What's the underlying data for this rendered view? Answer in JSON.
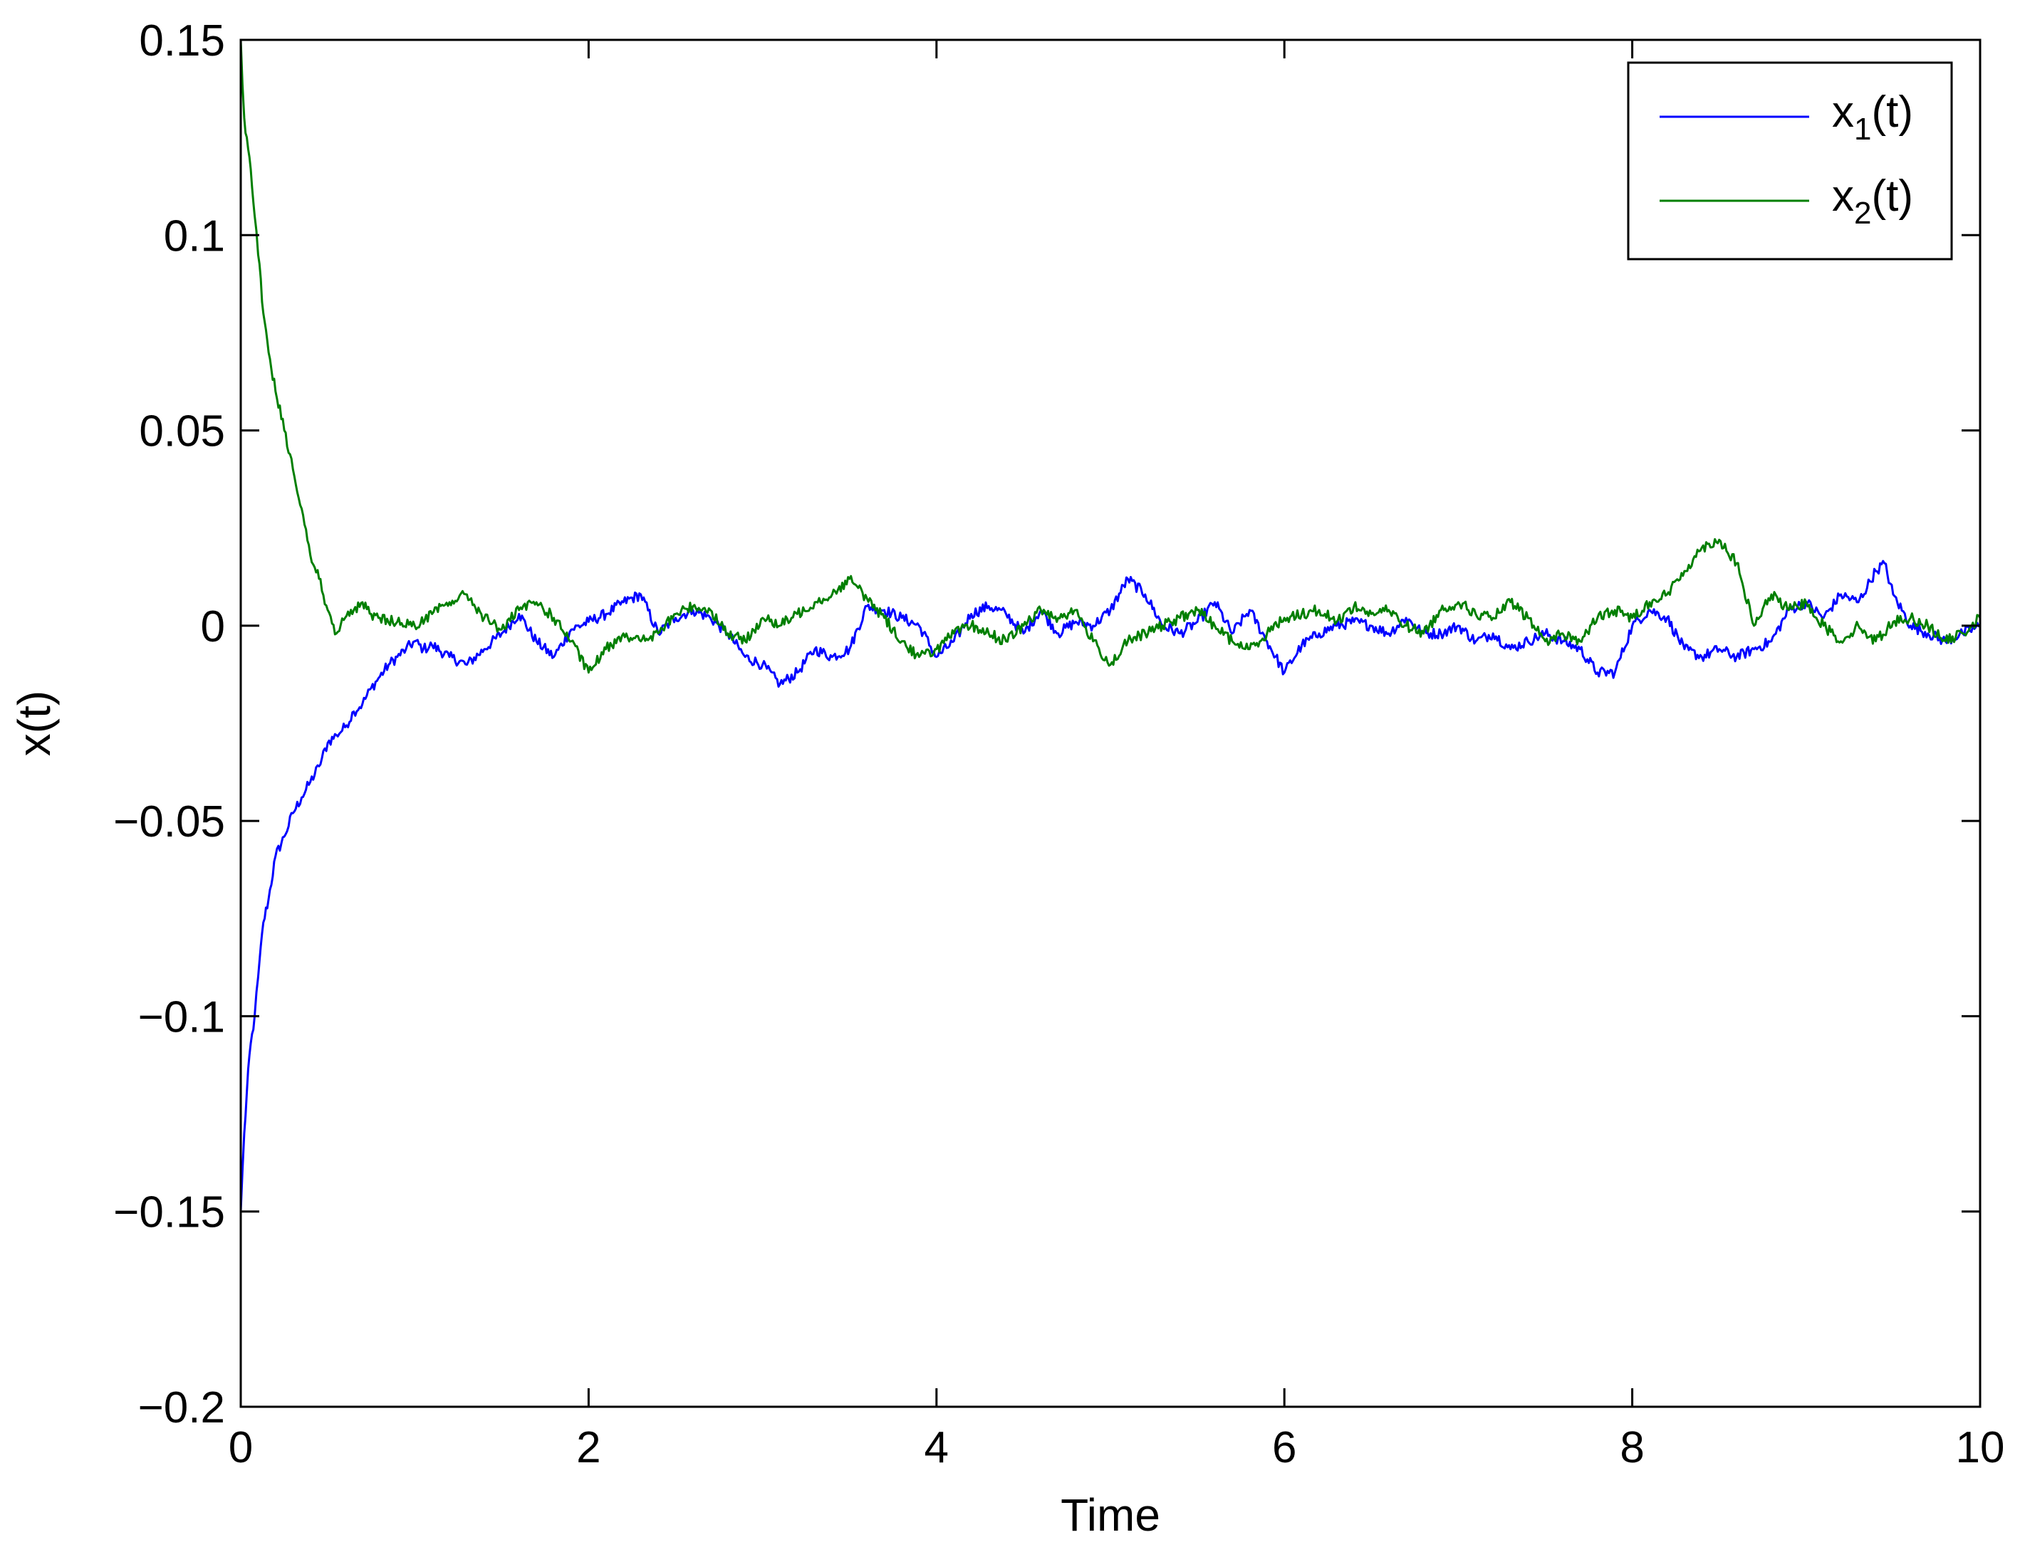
{
  "chart_data": {
    "type": "line",
    "title": "",
    "xlabel": "Time",
    "ylabel": "x(t)",
    "xlim": [
      0,
      10
    ],
    "ylim": [
      -0.2,
      0.15
    ],
    "xticks": [
      0,
      2,
      4,
      6,
      8,
      10
    ],
    "xtick_labels": [
      "0",
      "2",
      "4",
      "6",
      "8",
      "10"
    ],
    "yticks": [
      0.15,
      0.1,
      0.05,
      0,
      -0.05,
      -0.1,
      -0.15,
      -0.2
    ],
    "ytick_labels": [
      "0.15",
      "0.1",
      "0.05",
      "0",
      "−0.05",
      "−0.1",
      "−0.15",
      "−0.2"
    ],
    "grid": false,
    "legend_position": "top-right",
    "series": [
      {
        "name": "x1(t)",
        "legend": {
          "base": "x",
          "sub": "1",
          "suffix": "(t)"
        },
        "color": "#0000ff",
        "x": [
          0,
          0.02,
          0.05,
          0.08,
          0.1,
          0.13,
          0.16,
          0.2,
          0.25,
          0.3,
          0.35,
          0.4,
          0.45,
          0.5,
          0.55,
          0.6,
          0.65,
          0.7,
          0.75,
          0.8,
          0.85,
          0.9,
          0.95,
          1.0,
          1.05,
          1.1,
          1.2,
          1.3,
          1.4,
          1.5,
          1.6,
          1.7,
          1.8,
          1.9,
          2.0,
          2.1,
          2.2,
          2.3,
          2.4,
          2.5,
          2.6,
          2.7,
          2.8,
          2.9,
          3.0,
          3.1,
          3.2,
          3.3,
          3.4,
          3.5,
          3.6,
          3.7,
          3.8,
          3.9,
          4.0,
          4.1,
          4.2,
          4.3,
          4.4,
          4.5,
          4.6,
          4.7,
          4.8,
          4.9,
          5.0,
          5.1,
          5.2,
          5.3,
          5.4,
          5.5,
          5.6,
          5.7,
          5.8,
          5.9,
          6.0,
          6.1,
          6.2,
          6.3,
          6.4,
          6.5,
          6.6,
          6.7,
          6.8,
          6.9,
          7.0,
          7.1,
          7.2,
          7.3,
          7.4,
          7.5,
          7.6,
          7.7,
          7.8,
          7.9,
          8.0,
          8.1,
          8.2,
          8.3,
          8.4,
          8.5,
          8.6,
          8.7,
          8.8,
          8.9,
          9.0,
          9.1,
          9.2,
          9.3,
          9.4,
          9.45,
          9.5,
          9.6,
          9.7,
          9.8,
          9.9,
          10.0
        ],
        "y": [
          -0.15,
          -0.13,
          -0.11,
          -0.1,
          -0.09,
          -0.076,
          -0.07,
          -0.059,
          -0.054,
          -0.048,
          -0.044,
          -0.04,
          -0.036,
          -0.03,
          -0.028,
          -0.026,
          -0.022,
          -0.02,
          -0.016,
          -0.013,
          -0.01,
          -0.008,
          -0.006,
          -0.004,
          -0.006,
          -0.005,
          -0.008,
          -0.01,
          -0.006,
          -0.002,
          0.003,
          -0.004,
          -0.008,
          -0.001,
          0.001,
          0.003,
          0.006,
          0.008,
          -0.002,
          0.002,
          0.004,
          0.002,
          -0.002,
          -0.008,
          -0.01,
          -0.015,
          -0.012,
          -0.006,
          -0.008,
          -0.006,
          0.005,
          0.004,
          0.002,
          0.0,
          -0.008,
          -0.004,
          0.003,
          0.005,
          0.003,
          -0.002,
          0.004,
          -0.002,
          0.001,
          0.0,
          0.004,
          0.012,
          0.008,
          0.0,
          -0.002,
          0.001,
          0.006,
          -0.002,
          0.004,
          -0.004,
          -0.012,
          -0.005,
          -0.002,
          0.0,
          0.001,
          0.0,
          -0.002,
          0.002,
          -0.002,
          -0.002,
          0.0,
          -0.004,
          -0.002,
          -0.006,
          -0.004,
          -0.002,
          -0.004,
          -0.006,
          -0.012,
          -0.012,
          0.0,
          0.004,
          0.002,
          -0.006,
          -0.008,
          -0.006,
          -0.008,
          -0.006,
          -0.004,
          0.004,
          0.006,
          0.002,
          0.008,
          0.006,
          0.014,
          0.016,
          0.008,
          0.0,
          -0.002,
          -0.004,
          -0.002,
          0.0
        ]
      },
      {
        "name": "x2(t)",
        "legend": {
          "base": "x",
          "sub": "2",
          "suffix": "(t)"
        },
        "color": "#007f00",
        "x": [
          0,
          0.02,
          0.05,
          0.08,
          0.1,
          0.13,
          0.16,
          0.2,
          0.25,
          0.3,
          0.35,
          0.4,
          0.45,
          0.5,
          0.55,
          0.6,
          0.65,
          0.7,
          0.75,
          0.8,
          0.9,
          1.0,
          1.1,
          1.2,
          1.3,
          1.4,
          1.5,
          1.6,
          1.7,
          1.8,
          1.9,
          2.0,
          2.1,
          2.2,
          2.3,
          2.4,
          2.5,
          2.6,
          2.7,
          2.8,
          2.9,
          3.0,
          3.1,
          3.2,
          3.3,
          3.4,
          3.5,
          3.6,
          3.7,
          3.8,
          3.9,
          4.0,
          4.1,
          4.2,
          4.3,
          4.4,
          4.5,
          4.6,
          4.7,
          4.8,
          4.9,
          5.0,
          5.1,
          5.2,
          5.3,
          5.4,
          5.5,
          5.6,
          5.7,
          5.8,
          5.9,
          6.0,
          6.1,
          6.2,
          6.3,
          6.4,
          6.5,
          6.6,
          6.7,
          6.8,
          6.9,
          7.0,
          7.1,
          7.2,
          7.3,
          7.4,
          7.5,
          7.6,
          7.7,
          7.8,
          7.9,
          8.0,
          8.1,
          8.2,
          8.3,
          8.4,
          8.5,
          8.6,
          8.7,
          8.8,
          8.9,
          9.0,
          9.1,
          9.2,
          9.3,
          9.4,
          9.5,
          9.6,
          9.7,
          9.8,
          9.9,
          10.0
        ],
        "y": [
          0.15,
          0.13,
          0.12,
          0.105,
          0.095,
          0.08,
          0.07,
          0.06,
          0.05,
          0.04,
          0.03,
          0.018,
          0.012,
          0.004,
          -0.002,
          0.002,
          0.004,
          0.006,
          0.003,
          0.002,
          0.001,
          0.0,
          0.003,
          0.006,
          0.008,
          0.002,
          -0.001,
          0.004,
          0.006,
          0.002,
          -0.004,
          -0.012,
          -0.006,
          -0.002,
          -0.004,
          -0.002,
          0.003,
          0.005,
          0.004,
          -0.002,
          -0.004,
          0.002,
          0.0,
          0.003,
          0.006,
          0.008,
          0.012,
          0.007,
          0.002,
          -0.004,
          -0.008,
          -0.006,
          -0.002,
          0.0,
          -0.002,
          -0.004,
          0.0,
          0.004,
          0.002,
          0.004,
          -0.004,
          -0.01,
          -0.004,
          -0.002,
          0.0,
          0.002,
          0.004,
          0.0,
          -0.004,
          -0.006,
          -0.002,
          0.002,
          0.003,
          0.004,
          0.001,
          0.005,
          0.003,
          0.004,
          0.0,
          -0.002,
          0.004,
          0.006,
          0.003,
          0.002,
          0.006,
          0.002,
          -0.004,
          -0.002,
          -0.004,
          0.002,
          0.004,
          0.002,
          0.006,
          0.008,
          0.014,
          0.02,
          0.022,
          0.016,
          0.0,
          0.008,
          0.004,
          0.006,
          0.0,
          -0.004,
          0.0,
          -0.004,
          0.001,
          0.002,
          0.0,
          -0.004,
          -0.002,
          0.002
        ]
      }
    ]
  }
}
